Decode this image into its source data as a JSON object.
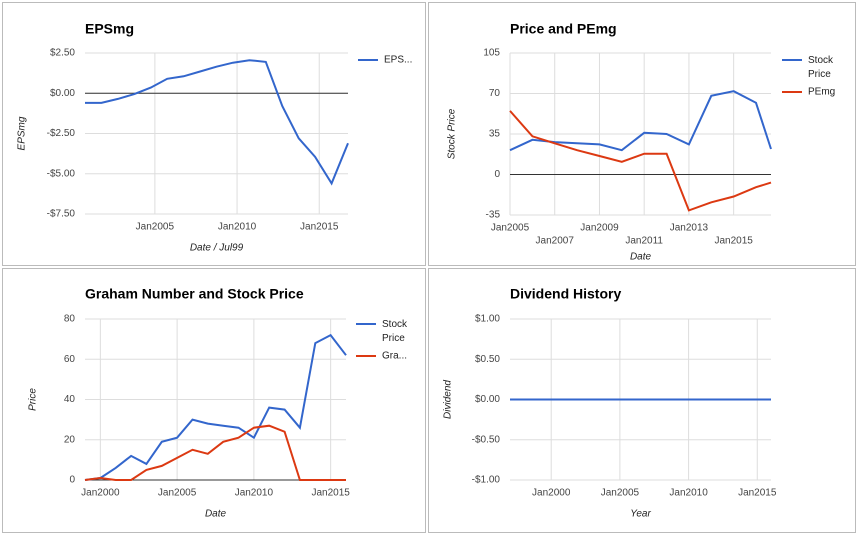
{
  "chart_data": [
    {
      "type": "line",
      "title": "EPSmg",
      "y_label": "EPSmg",
      "x_label": "Date / Jul99",
      "x": [
        2000.75,
        2001.75,
        2002.75,
        2003.75,
        2004.75,
        2005.75,
        2006.75,
        2007.75,
        2008.75,
        2009.75,
        2010.75,
        2011.75,
        2012.75,
        2013.75,
        2014.75,
        2015.75,
        2016.75
      ],
      "series": [
        {
          "name": "EPS...",
          "color": "#3366cc",
          "values": [
            -0.6,
            -0.6,
            -0.35,
            -0.05,
            0.35,
            0.9,
            1.05,
            1.35,
            1.65,
            1.9,
            2.05,
            1.95,
            -0.8,
            -2.8,
            -3.95,
            -5.6,
            -3.1
          ]
        }
      ],
      "xlim": [
        2000.75,
        2016.75
      ],
      "xticks": [
        {
          "value": 2005,
          "label": "Jan2005"
        },
        {
          "value": 2010,
          "label": "Jan2010"
        },
        {
          "value": 2015,
          "label": "Jan2015"
        }
      ],
      "ylim": [
        -7.5,
        2.5
      ],
      "yticks": [
        {
          "value": 2.5,
          "label": "$2.50"
        },
        {
          "value": 0,
          "label": "$0.00"
        },
        {
          "value": -2.5,
          "label": "-$2.50"
        },
        {
          "value": -5,
          "label": "-$5.00"
        },
        {
          "value": -7.5,
          "label": "-$7.50"
        }
      ],
      "grid": true,
      "legend": "right"
    },
    {
      "type": "line",
      "title": "Price and PEmg",
      "y_label": "Stock Price",
      "x_label": "Date",
      "x": [
        2005,
        2006,
        2007,
        2008,
        2009,
        2010,
        2011,
        2012,
        2013,
        2014,
        2015,
        2016,
        2016.67
      ],
      "series": [
        {
          "name": "Stock Price",
          "color": "#3366cc",
          "values": [
            21,
            30,
            28,
            27,
            26,
            21,
            36,
            35,
            26,
            68,
            72,
            62,
            22
          ]
        },
        {
          "name": "PEmg",
          "color": "#dc3912",
          "values": [
            55,
            33,
            27,
            21,
            16,
            11,
            18,
            18,
            -31,
            -24,
            -19,
            -11,
            -7
          ]
        }
      ],
      "xlim": [
        2005,
        2016.67
      ],
      "xticks": [
        {
          "value": 2005,
          "label": "Jan2005"
        },
        {
          "value": 2007,
          "label": "Jan2007"
        },
        {
          "value": 2009,
          "label": "Jan2009"
        },
        {
          "value": 2011,
          "label": "Jan2011"
        },
        {
          "value": 2013,
          "label": "Jan2013"
        },
        {
          "value": 2015,
          "label": "Jan2015"
        }
      ],
      "ylim": [
        -35,
        105
      ],
      "yticks": [
        105,
        70,
        35,
        0,
        -35
      ],
      "grid": true,
      "legend": "right"
    },
    {
      "type": "line",
      "title": "Graham Number and Stock Price",
      "y_label": "Price",
      "x_label": "Date",
      "x": [
        1999,
        2000,
        2001,
        2002,
        2003,
        2004,
        2005,
        2006,
        2007,
        2008,
        2009,
        2010,
        2011,
        2012,
        2013,
        2014,
        2015,
        2016
      ],
      "series": [
        {
          "name": "Stock Price",
          "color": "#3366cc",
          "values": [
            0,
            1,
            6,
            12,
            8,
            19,
            21,
            30,
            28,
            27,
            26,
            21,
            36,
            35,
            26,
            68,
            72,
            62
          ]
        },
        {
          "name": "Gra...",
          "color": "#dc3912",
          "values": [
            0,
            1,
            0,
            0,
            5,
            7,
            11,
            15,
            13,
            19,
            21,
            26,
            27,
            24,
            0,
            0,
            0,
            0
          ]
        }
      ],
      "xlim": [
        1999,
        2016
      ],
      "xticks": [
        {
          "value": 2000,
          "label": "Jan2000"
        },
        {
          "value": 2005,
          "label": "Jan2005"
        },
        {
          "value": 2010,
          "label": "Jan2010"
        },
        {
          "value": 2015,
          "label": "Jan2015"
        }
      ],
      "ylim": [
        0,
        80
      ],
      "yticks": [
        80,
        60,
        40,
        20,
        0
      ],
      "grid": true,
      "legend": "right"
    },
    {
      "type": "line",
      "title": "Dividend History",
      "y_label": "Dividend",
      "x_label": "Year",
      "x": [
        1997,
        1998,
        1999,
        2000,
        2001,
        2002,
        2003,
        2004,
        2005,
        2006,
        2007,
        2008,
        2009,
        2010,
        2011,
        2012,
        2013,
        2014,
        2015,
        2016
      ],
      "series": [
        {
          "color": "#3366cc",
          "values": [
            0,
            0,
            0,
            0,
            0,
            0,
            0,
            0,
            0,
            0,
            0,
            0,
            0,
            0,
            0,
            0,
            0,
            0,
            0,
            0
          ]
        }
      ],
      "xlim": [
        1997,
        2016
      ],
      "xticks": [
        {
          "value": 2000,
          "label": "Jan2000"
        },
        {
          "value": 2005,
          "label": "Jan2005"
        },
        {
          "value": 2010,
          "label": "Jan2010"
        },
        {
          "value": 2015,
          "label": "Jan2015"
        }
      ],
      "ylim": [
        -1,
        1
      ],
      "yticks": [
        {
          "value": 1,
          "label": "$1.00"
        },
        {
          "value": 0.5,
          "label": "$0.50"
        },
        {
          "value": 0,
          "label": "$0.00"
        },
        {
          "value": -0.5,
          "label": "-$0.50"
        },
        {
          "value": -1,
          "label": "-$1.00"
        }
      ],
      "grid": true
    }
  ]
}
